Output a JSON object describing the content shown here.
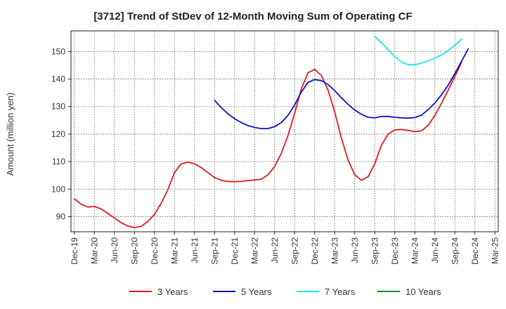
{
  "chart_data": {
    "type": "line",
    "title": "[3712]  Trend of StDev of 12-Month Moving Sum of Operating CF",
    "ylabel": "Amount (million yen)",
    "xlabel": "",
    "ylim": [
      84.5,
      157.5
    ],
    "yticks": [
      90,
      100,
      110,
      120,
      130,
      140,
      150
    ],
    "x_tick_labels": [
      "Dec-19",
      "Mar-20",
      "Jun-20",
      "Sep-20",
      "Dec-20",
      "Mar-21",
      "Jun-21",
      "Sep-21",
      "Dec-21",
      "Mar-22",
      "Jun-22",
      "Sep-22",
      "Dec-22",
      "Mar-23",
      "Jun-23",
      "Sep-23",
      "Dec-23",
      "Mar-24",
      "Jun-24",
      "Sep-24",
      "Dec-24",
      "Mar-25"
    ],
    "x_months": [
      "2019-12",
      "2020-01",
      "2020-02",
      "2020-03",
      "2020-04",
      "2020-05",
      "2020-06",
      "2020-07",
      "2020-08",
      "2020-09",
      "2020-10",
      "2020-11",
      "2020-12",
      "2021-01",
      "2021-02",
      "2021-03",
      "2021-04",
      "2021-05",
      "2021-06",
      "2021-07",
      "2021-08",
      "2021-09",
      "2021-10",
      "2021-11",
      "2021-12",
      "2022-01",
      "2022-02",
      "2022-03",
      "2022-04",
      "2022-05",
      "2022-06",
      "2022-07",
      "2022-08",
      "2022-09",
      "2022-10",
      "2022-11",
      "2022-12",
      "2023-01",
      "2023-02",
      "2023-03",
      "2023-04",
      "2023-05",
      "2023-06",
      "2023-07",
      "2023-08",
      "2023-09",
      "2023-10",
      "2023-11",
      "2023-12",
      "2024-01",
      "2024-02",
      "2024-03",
      "2024-04",
      "2024-05",
      "2024-06",
      "2024-07",
      "2024-08",
      "2024-09",
      "2024-10",
      "2024-11",
      "2024-12",
      "2025-01",
      "2025-02",
      "2025-03"
    ],
    "grid": true,
    "legend_position": "bottom",
    "series": [
      {
        "name": "3 Years",
        "color": "#e31a1c",
        "values": [
          96.5,
          94.5,
          93.5,
          93.7,
          92.8,
          91.2,
          89.5,
          87.8,
          86.6,
          86.0,
          86.5,
          88.2,
          90.8,
          94.8,
          99.8,
          106.0,
          109.2,
          109.8,
          109.2,
          107.8,
          106.0,
          104.2,
          103.2,
          102.8,
          102.7,
          102.8,
          103.1,
          103.3,
          103.6,
          105.2,
          108.2,
          113.0,
          119.5,
          127.5,
          136.5,
          142.3,
          143.5,
          141.3,
          136.0,
          128.0,
          118.5,
          110.5,
          105.2,
          103.2,
          104.5,
          109.2,
          116.0,
          120.0,
          121.5,
          121.7,
          121.3,
          120.9,
          121.2,
          123.2,
          126.8,
          131.2,
          136.0,
          141.0,
          146.0,
          null,
          null,
          null,
          null,
          null
        ]
      },
      {
        "name": "5 Years",
        "color": "#0a14c8",
        "values": [
          null,
          null,
          null,
          null,
          null,
          null,
          null,
          null,
          null,
          null,
          null,
          null,
          null,
          null,
          null,
          null,
          null,
          null,
          null,
          null,
          null,
          132.3,
          129.6,
          127.4,
          125.6,
          124.2,
          123.1,
          122.4,
          122.0,
          122.0,
          122.7,
          124.2,
          126.8,
          130.6,
          135.3,
          138.8,
          139.8,
          139.4,
          138.0,
          135.8,
          133.2,
          130.8,
          128.7,
          127.2,
          126.1,
          125.9,
          126.4,
          126.4,
          126.1,
          125.9,
          125.8,
          126.0,
          126.9,
          128.9,
          131.3,
          134.3,
          137.8,
          142.0,
          146.5,
          151.0,
          null,
          null,
          null,
          null
        ]
      },
      {
        "name": "7 Years",
        "color": "#1ee6e6",
        "values": [
          null,
          null,
          null,
          null,
          null,
          null,
          null,
          null,
          null,
          null,
          null,
          null,
          null,
          null,
          null,
          null,
          null,
          null,
          null,
          null,
          null,
          null,
          null,
          null,
          null,
          null,
          null,
          null,
          null,
          null,
          null,
          null,
          null,
          null,
          null,
          null,
          null,
          null,
          null,
          null,
          null,
          null,
          null,
          null,
          null,
          155.5,
          153.2,
          150.6,
          148.2,
          146.2,
          145.2,
          145.2,
          145.8,
          146.6,
          147.6,
          148.8,
          150.4,
          152.3,
          154.5,
          null,
          null,
          null,
          null,
          null
        ]
      },
      {
        "name": "10 Years",
        "color": "#228b22",
        "values": []
      }
    ]
  }
}
